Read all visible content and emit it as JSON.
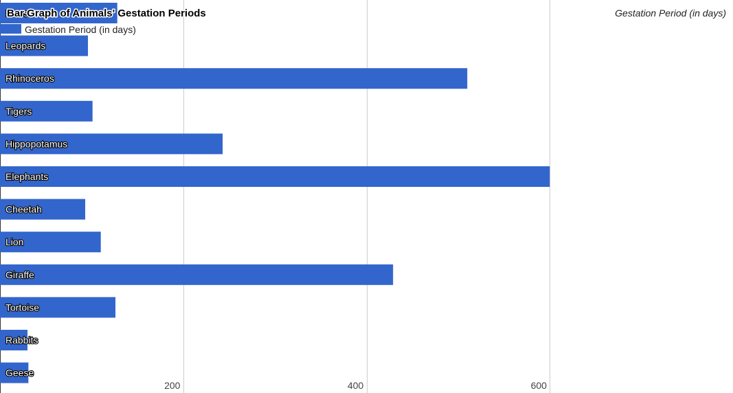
{
  "chart_data": {
    "type": "bar",
    "orientation": "horizontal",
    "title": "Bar Graph of Animals' Gestation Periods",
    "xlabel": "Gestation Period (in days)",
    "ylabel": "",
    "categories": [
      "Lions",
      "Leopards",
      "Rhinoceros",
      "Tigers",
      "Hippopotamus",
      "Elephants",
      "Cheetah",
      "Lion",
      "Giraffe",
      "Tortoise",
      "Rabbits",
      "Geese"
    ],
    "series": [
      {
        "name": "Gestation Period (in days)",
        "values": [
          128,
          96,
          510,
          101,
          243,
          600,
          93,
          110,
          429,
          126,
          30,
          31
        ]
      }
    ],
    "xlim": [
      0,
      800
    ],
    "xticks": [
      200,
      400,
      600
    ],
    "xtick_labels": [
      "200",
      "400",
      "600"
    ],
    "grid": true,
    "legend": "top-left",
    "bar_color": "#3366cc"
  }
}
